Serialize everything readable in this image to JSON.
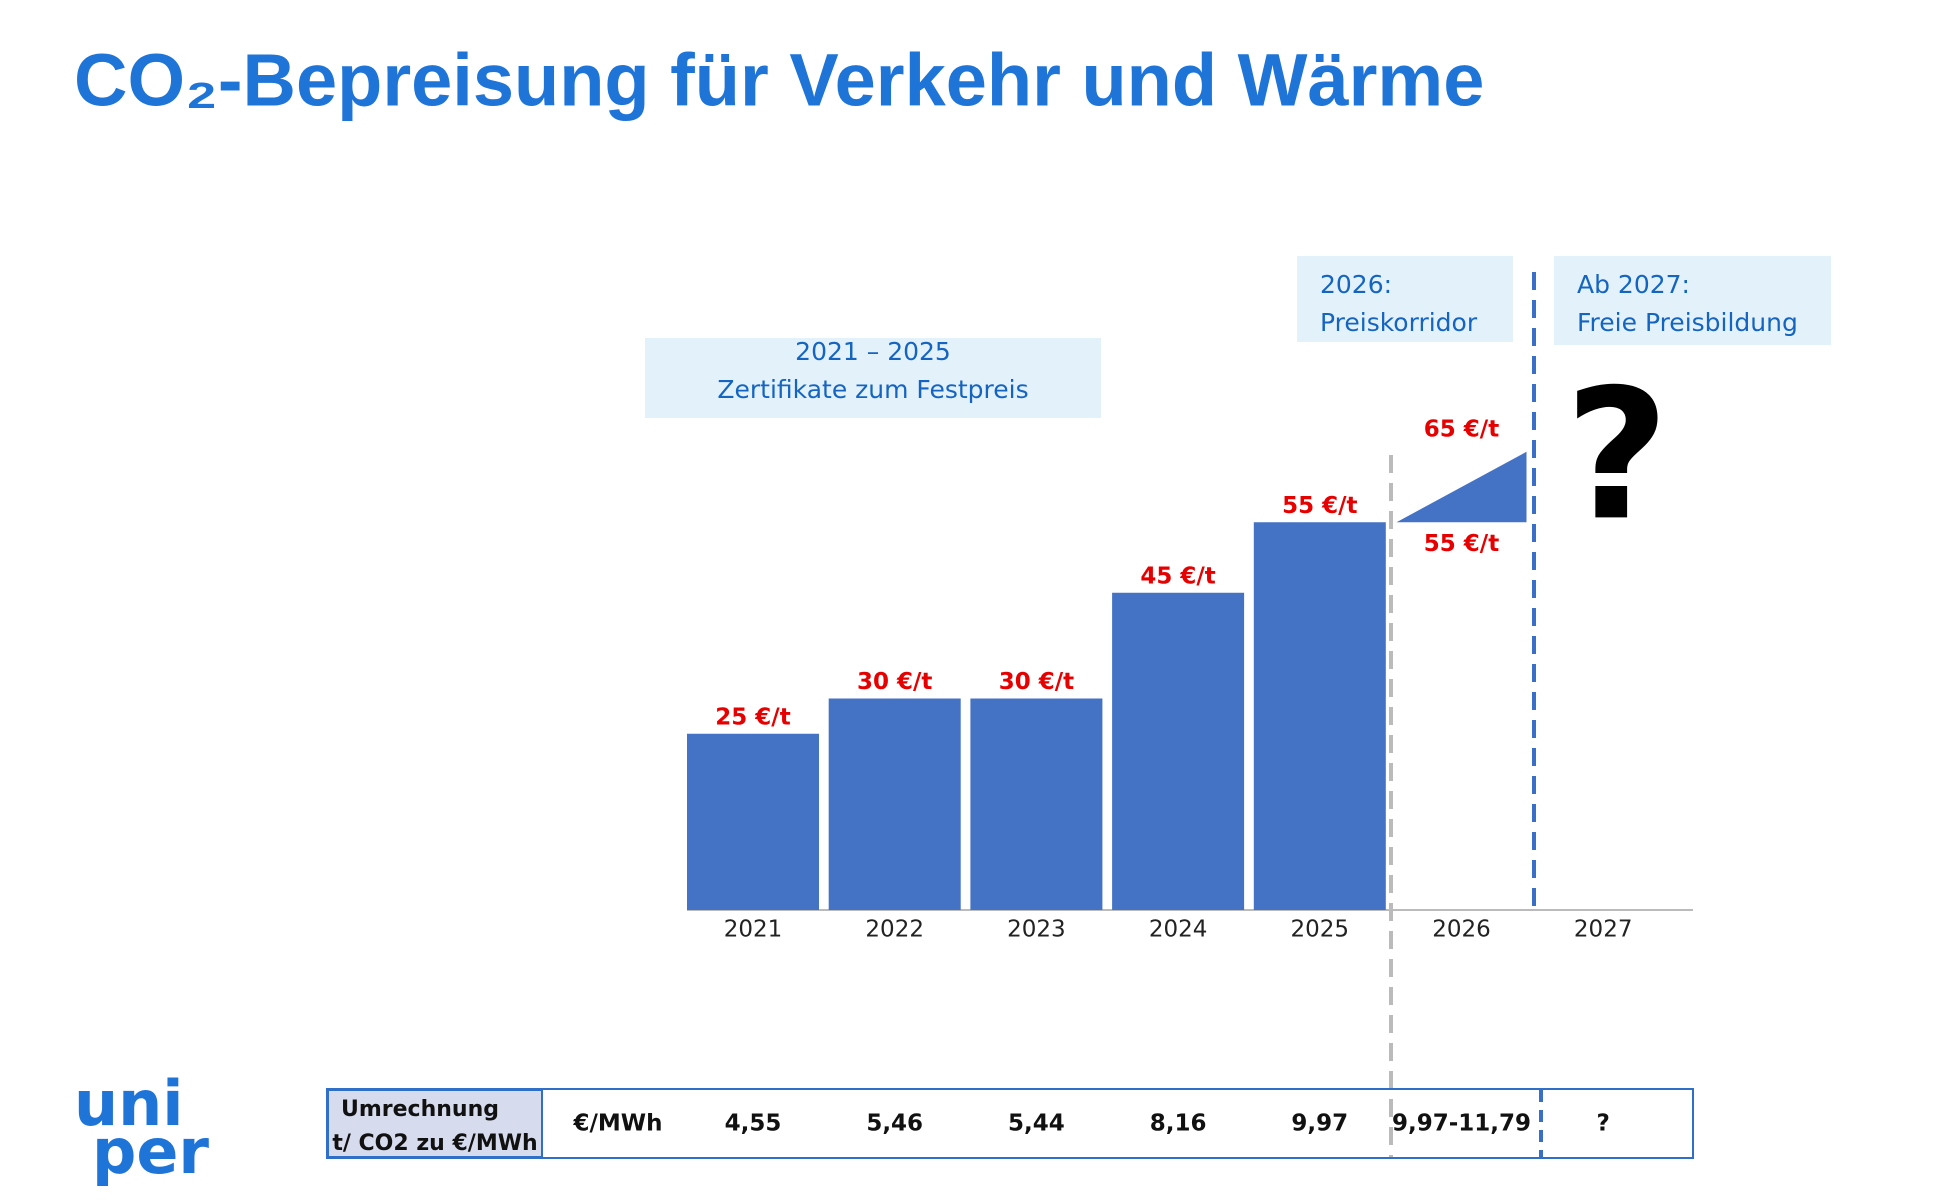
{
  "title": "CO₂-Bepreisung für Verkehr und Wärme",
  "logo": [
    "uni",
    "per"
  ],
  "chart_data": {
    "type": "bar",
    "categories": [
      "2021",
      "2022",
      "2023",
      "2024",
      "2025",
      "2026",
      "2027"
    ],
    "values": [
      25,
      30,
      30,
      45,
      55,
      null,
      null
    ],
    "value_labels": [
      "25 €/t",
      "30 €/t",
      "30 €/t",
      "45 €/t",
      "55 €/t",
      null,
      null
    ],
    "color": "#4472c4",
    "corridor": {
      "low": 55,
      "high": 65,
      "low_label": "55 €/t",
      "high_label": "65 €/t"
    },
    "annotations": [
      [
        "2021 – 2025",
        "Zertifikate zum Festpreis"
      ],
      [
        "2026:",
        "Preiskorridor"
      ],
      [
        "Ab 2027:",
        "Freie Preisbildung"
      ],
      "?"
    ]
  },
  "table": {
    "header": [
      "Umrechnung",
      "t/ CO2 zu €/MWh"
    ],
    "unit": "€/MWh",
    "values": [
      "4,55",
      "5,46",
      "5,44",
      "8,16",
      "9,97",
      "9,97-11,79",
      "?"
    ]
  }
}
